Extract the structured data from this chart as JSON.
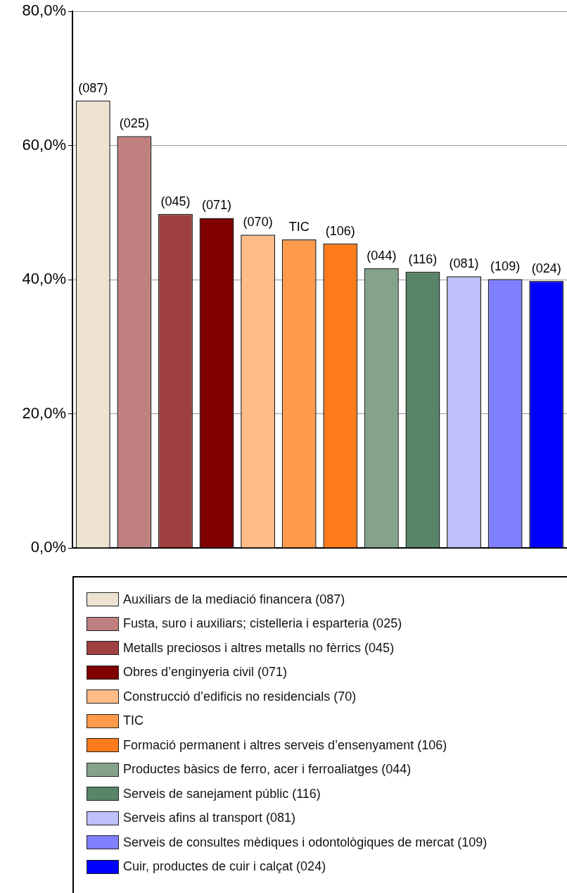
{
  "chart_data": {
    "type": "bar",
    "categories": [
      null,
      null,
      null,
      null,
      null,
      null,
      null,
      null,
      null,
      null,
      null,
      null
    ],
    "series": [
      {
        "name": "Auxiliars de la mediació financera (087)",
        "color": "#eee3d3",
        "values": [
          66.7,
          null,
          null,
          null,
          null,
          null,
          null,
          null,
          null,
          null,
          null,
          null
        ]
      },
      {
        "name": "Fusta, suro i auxiliars; cistelleria i esparteria (025)",
        "color": "#c08080",
        "values": [
          null,
          61.4,
          null,
          null,
          null,
          null,
          null,
          null,
          null,
          null,
          null,
          null
        ]
      },
      {
        "name": "Metalls preciosos i altres metalls no fèrrics (045)",
        "color": "#a04040",
        "values": [
          null,
          null,
          49.8,
          null,
          null,
          null,
          null,
          null,
          null,
          null,
          null,
          null
        ]
      },
      {
        "name": "Obres d’enginyeria civil (071)",
        "color": "#800000",
        "values": [
          null,
          null,
          null,
          49.2,
          null,
          null,
          null,
          null,
          null,
          null,
          null,
          null
        ]
      },
      {
        "name": "Construcció d’edificis no residencials (70)",
        "color": "#ffbb88",
        "values": [
          null,
          null,
          null,
          null,
          46.7,
          null,
          null,
          null,
          null,
          null,
          null,
          null
        ]
      },
      {
        "name": "TIC",
        "color": "#ff9a4a",
        "values": [
          null,
          null,
          null,
          null,
          null,
          46.0,
          null,
          null,
          null,
          null,
          null,
          null
        ]
      },
      {
        "name": "Formació permanent i altres serveis d’ensenyament (106)",
        "color": "#ff7a1a",
        "values": [
          null,
          null,
          null,
          null,
          null,
          null,
          45.4,
          null,
          null,
          null,
          null,
          null
        ]
      },
      {
        "name": "Productes bàsics de ferro, acer i ferroaliatges (044)",
        "color": "#84a38a",
        "values": [
          null,
          null,
          null,
          null,
          null,
          null,
          null,
          41.7,
          null,
          null,
          null,
          null
        ]
      },
      {
        "name": "Serveis de sanejament públic (116)",
        "color": "#588468",
        "values": [
          null,
          null,
          null,
          null,
          null,
          null,
          null,
          null,
          41.2,
          null,
          null,
          null
        ]
      },
      {
        "name": "Serveis afins al transport (081)",
        "color": "#c0c0ff",
        "values": [
          null,
          null,
          null,
          null,
          null,
          null,
          null,
          null,
          null,
          40.5,
          null,
          null
        ]
      },
      {
        "name": "Serveis de consultes mèdiques i odontològiques de mercat (109)",
        "color": "#8080ff",
        "values": [
          null,
          null,
          null,
          null,
          null,
          null,
          null,
          null,
          null,
          null,
          40.1,
          null
        ]
      },
      {
        "name": "Cuir, productes de cuir i calçat (024)",
        "color": "#0000ff",
        "values": [
          null,
          null,
          null,
          null,
          null,
          null,
          null,
          null,
          null,
          null,
          null,
          39.8
        ]
      }
    ],
    "annotations": [
      {
        "text": "(087)",
        "y": 66.7
      },
      {
        "text": "(025)",
        "y": 61.4
      },
      {
        "text": "(045)",
        "y": 49.8
      },
      {
        "text": "(071)",
        "y": 49.2
      },
      {
        "text": "(070)",
        "y": 46.7
      },
      {
        "text": "TIC",
        "y": 46.0
      },
      {
        "text": "(106)",
        "y": 45.4
      },
      {
        "text": "(044)",
        "y": 41.7
      },
      {
        "text": "(116)",
        "y": 41.2
      },
      {
        "text": "(081)",
        "y": 40.5
      },
      {
        "text": "(109)",
        "y": 40.1
      },
      {
        "text": "(024)",
        "y": 39.8
      }
    ],
    "ylim": [
      0,
      80
    ],
    "yticks": [
      {
        "value": 0,
        "label": "0,0%"
      },
      {
        "value": 20,
        "label": "20,0%"
      },
      {
        "value": 40,
        "label": "40,0%"
      },
      {
        "value": 60,
        "label": "60,0%"
      },
      {
        "value": 80,
        "label": "80,0%"
      }
    ],
    "grid": "y",
    "legend": "bottom",
    "tick_labels": "y"
  }
}
